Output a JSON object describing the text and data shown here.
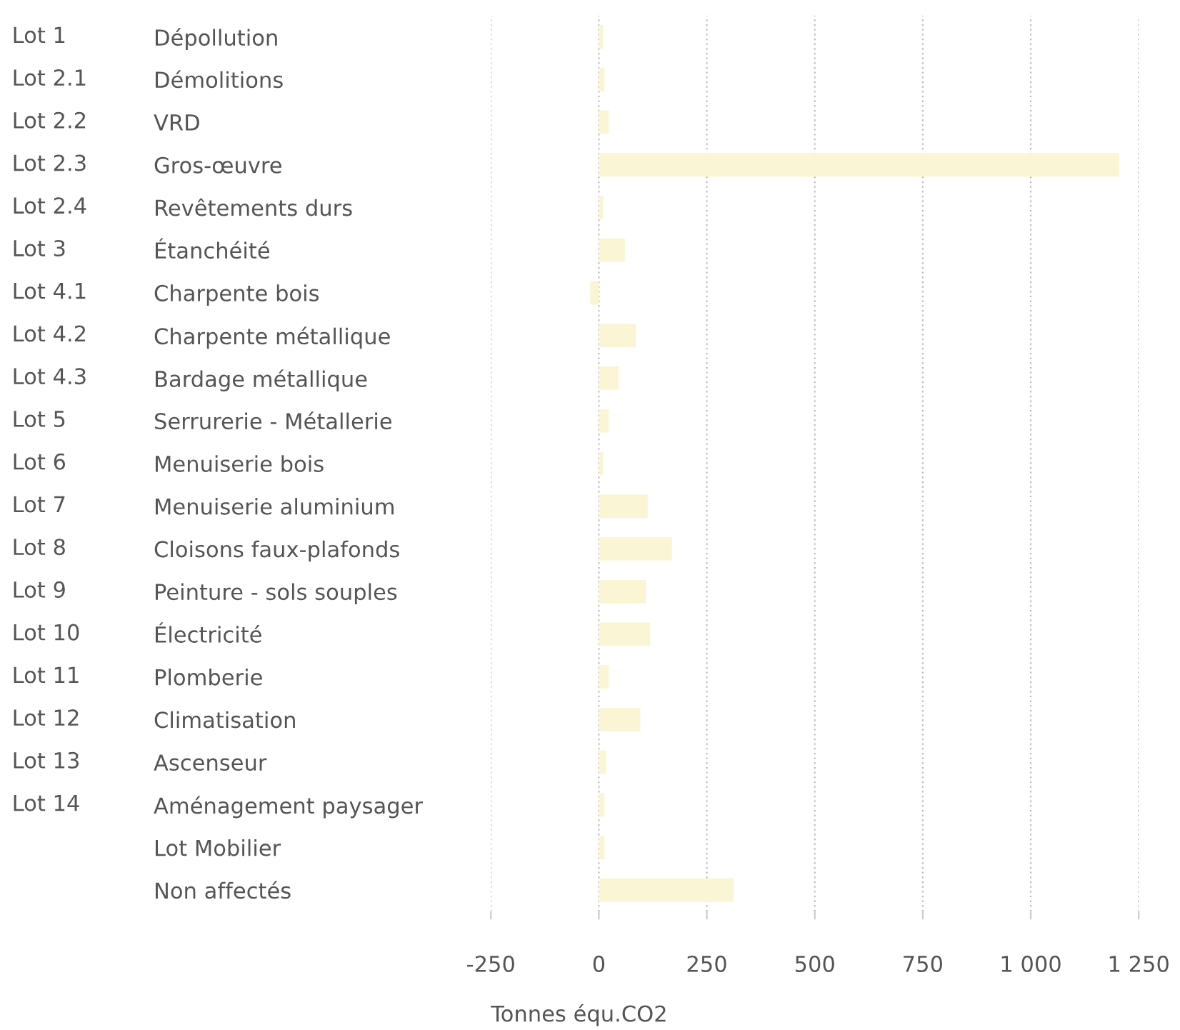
{
  "chart_data": {
    "type": "bar",
    "orientation": "horizontal",
    "xlabel": "Tonnes équ.CO2",
    "categories": [
      "Dépollution",
      "Démolitions",
      "VRD",
      "Gros-œuvre",
      "Revêtements durs",
      "Étanchéité",
      "Charpente bois",
      "Charpente métallique",
      "Bardage métallique",
      "Serrurerie - Métallerie",
      "Menuiserie bois",
      "Menuiserie aluminium",
      "Cloisons faux-plafonds",
      "Peinture - sols souples",
      "Électricité",
      "Plomberie",
      "Climatisation",
      "Ascenseur",
      "Aménagement paysager",
      "Lot Mobilier",
      "Non affectés"
    ],
    "values": [
      10,
      13,
      23,
      1205,
      10,
      60,
      -20,
      86,
      46,
      23,
      10,
      113,
      169,
      109,
      119,
      23,
      96,
      17,
      13,
      13,
      312
    ],
    "color": "#faf5d4",
    "xlim": [
      -250,
      1250
    ],
    "xticks": [
      -250,
      0,
      250,
      500,
      750,
      {
        "value": 1000,
        "label": "1 000"
      },
      {
        "value": 1250,
        "label": "1 250"
      }
    ],
    "grid": "x",
    "annotations": [
      "Lot 1",
      "Lot 2.1",
      "Lot 2.2",
      "Lot 2.3",
      "Lot 2.4",
      "Lot 3",
      "Lot 4.1",
      "Lot 4.2",
      "Lot 4.3",
      "Lot 5",
      "Lot 6",
      "Lot 7",
      "Lot 8",
      "Lot 9",
      "Lot 10",
      "Lot 11",
      "Lot 12",
      "Lot 13",
      "Lot 14"
    ]
  }
}
